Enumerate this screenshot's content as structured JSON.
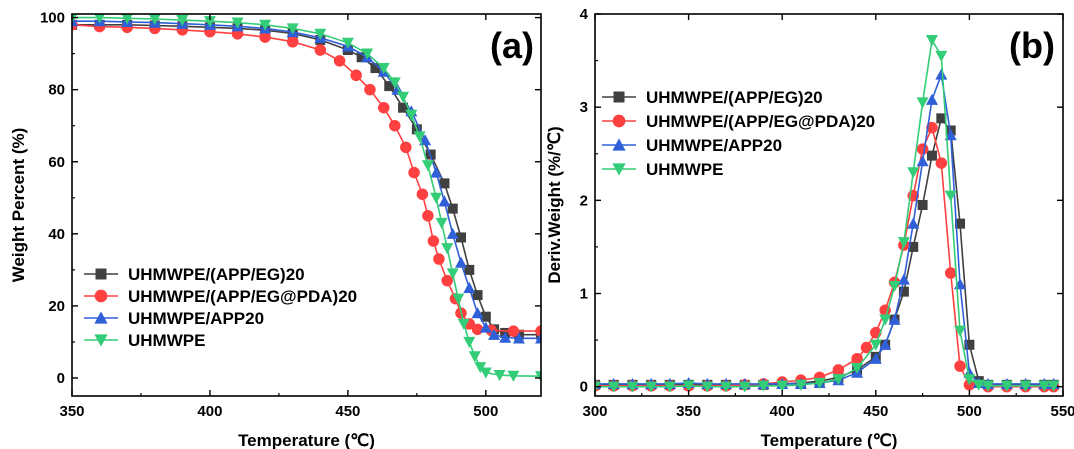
{
  "chart_data": [
    {
      "type": "scatter",
      "panel_label": "(a)",
      "title": "",
      "xlabel": "Temperature (℃)",
      "ylabel": "Weight Percent (%)",
      "xlim": [
        350,
        520
      ],
      "ylim": [
        -5,
        101
      ],
      "xticks": [
        350,
        400,
        450,
        500
      ],
      "yticks": [
        0,
        20,
        40,
        60,
        80,
        100
      ],
      "grid": false,
      "legend_position": "bottom-left",
      "series": [
        {
          "name": "UHMWPE/(APP/EG)20",
          "color": "#404040",
          "marker": "square",
          "points": [
            [
              350,
              98
            ],
            [
              360,
              98
            ],
            [
              370,
              98
            ],
            [
              380,
              97.8
            ],
            [
              390,
              97.6
            ],
            [
              400,
              97.3
            ],
            [
              410,
              97
            ],
            [
              420,
              96.5
            ],
            [
              430,
              95.6
            ],
            [
              440,
              93.8
            ],
            [
              450,
              91
            ],
            [
              455,
              89
            ],
            [
              460,
              86
            ],
            [
              465,
              81
            ],
            [
              470,
              75
            ],
            [
              475,
              69
            ],
            [
              480,
              62
            ],
            [
              485,
              54
            ],
            [
              488,
              47
            ],
            [
              491,
              39
            ],
            [
              494,
              30
            ],
            [
              497,
              23
            ],
            [
              500,
              17
            ],
            [
              503,
              13.5
            ],
            [
              507,
              12.5
            ],
            [
              512,
              12
            ],
            [
              520,
              12
            ]
          ]
        },
        {
          "name": "UHMWPE/(APP/EG@PDA)20",
          "color": "#ff4040",
          "marker": "circle",
          "points": [
            [
              350,
              98
            ],
            [
              360,
              97.5
            ],
            [
              370,
              97.3
            ],
            [
              380,
              97
            ],
            [
              390,
              96.6
            ],
            [
              400,
              96.1
            ],
            [
              410,
              95.5
            ],
            [
              420,
              94.6
            ],
            [
              430,
              93.3
            ],
            [
              440,
              91
            ],
            [
              447,
              88
            ],
            [
              453,
              84
            ],
            [
              458,
              80
            ],
            [
              463,
              75
            ],
            [
              467,
              70
            ],
            [
              471,
              64
            ],
            [
              474,
              57
            ],
            [
              477,
              51
            ],
            [
              479,
              45
            ],
            [
              481,
              38
            ],
            [
              483,
              33
            ],
            [
              486,
              27
            ],
            [
              489,
              22
            ],
            [
              491,
              18
            ],
            [
              494,
              15
            ],
            [
              497,
              13.5
            ],
            [
              502,
              13.2
            ],
            [
              510,
              13
            ],
            [
              520,
              13
            ]
          ]
        },
        {
          "name": "UHMWPE/APP20",
          "color": "#3060d8",
          "marker": "triangle-up",
          "points": [
            [
              350,
              99
            ],
            [
              360,
              99
            ],
            [
              370,
              98.8
            ],
            [
              380,
              98.6
            ],
            [
              390,
              98.3
            ],
            [
              400,
              98
            ],
            [
              410,
              97.6
            ],
            [
              420,
              97
            ],
            [
              430,
              96
            ],
            [
              440,
              94.4
            ],
            [
              450,
              92
            ],
            [
              457,
              89
            ],
            [
              463,
              85
            ],
            [
              468,
              80
            ],
            [
              473,
              74
            ],
            [
              478,
              66
            ],
            [
              482,
              57
            ],
            [
              485,
              49
            ],
            [
              488,
              40
            ],
            [
              491,
              32
            ],
            [
              494,
              25
            ],
            [
              497,
              18
            ],
            [
              500,
              14
            ],
            [
              503,
              12
            ],
            [
              507,
              11.2
            ],
            [
              512,
              11
            ],
            [
              520,
              11
            ]
          ]
        },
        {
          "name": "UHMWPE",
          "color": "#33cc77",
          "marker": "triangle-down",
          "points": [
            [
              350,
              100
            ],
            [
              360,
              100
            ],
            [
              370,
              99.8
            ],
            [
              380,
              99.6
            ],
            [
              390,
              99.3
            ],
            [
              400,
              99
            ],
            [
              410,
              98.6
            ],
            [
              420,
              98
            ],
            [
              430,
              97
            ],
            [
              440,
              95.5
            ],
            [
              450,
              93
            ],
            [
              457,
              90
            ],
            [
              463,
              86
            ],
            [
              467,
              82
            ],
            [
              470,
              78
            ],
            [
              473,
              73
            ],
            [
              476,
              67
            ],
            [
              479,
              59
            ],
            [
              482,
              50
            ],
            [
              484,
              43
            ],
            [
              486,
              36
            ],
            [
              488,
              29
            ],
            [
              490,
              22
            ],
            [
              492,
              15
            ],
            [
              494,
              10
            ],
            [
              496,
              6
            ],
            [
              498,
              3
            ],
            [
              500,
              1.5
            ],
            [
              505,
              0.8
            ],
            [
              510,
              0.6
            ],
            [
              520,
              0.5
            ]
          ]
        }
      ]
    },
    {
      "type": "scatter",
      "panel_label": "(b)",
      "title": "",
      "xlabel": "Temperature (℃)",
      "ylabel": "Deriv.Weight (%/℃)",
      "xlim": [
        300,
        550
      ],
      "ylim": [
        -0.1,
        4
      ],
      "xticks": [
        300,
        350,
        400,
        450,
        500,
        550
      ],
      "yticks": [
        0,
        1,
        2,
        3,
        4
      ],
      "grid": false,
      "legend_position": "top-left",
      "series": [
        {
          "name": "UHMWPE/(APP/EG)20",
          "color": "#404040",
          "marker": "square",
          "points": [
            [
              300,
              0.02
            ],
            [
              310,
              0.02
            ],
            [
              320,
              0.02
            ],
            [
              330,
              0.02
            ],
            [
              340,
              0.02
            ],
            [
              350,
              0.02
            ],
            [
              360,
              0.02
            ],
            [
              370,
              0.02
            ],
            [
              380,
              0.02
            ],
            [
              390,
              0.02
            ],
            [
              400,
              0.03
            ],
            [
              410,
              0.04
            ],
            [
              420,
              0.06
            ],
            [
              430,
              0.1
            ],
            [
              440,
              0.18
            ],
            [
              450,
              0.32
            ],
            [
              455,
              0.45
            ],
            [
              460,
              0.72
            ],
            [
              465,
              1.02
            ],
            [
              470,
              1.5
            ],
            [
              475,
              1.95
            ],
            [
              480,
              2.48
            ],
            [
              485,
              2.88
            ],
            [
              490,
              2.75
            ],
            [
              495,
              1.75
            ],
            [
              500,
              0.45
            ],
            [
              505,
              0.06
            ],
            [
              510,
              0.02
            ],
            [
              520,
              0.02
            ],
            [
              530,
              0.02
            ],
            [
              540,
              0.02
            ],
            [
              545,
              0.02
            ]
          ]
        },
        {
          "name": "UHMWPE/(APP/EG@PDA)20",
          "color": "#ff4040",
          "marker": "circle",
          "points": [
            [
              300,
              0.01
            ],
            [
              310,
              0.01
            ],
            [
              320,
              0.01
            ],
            [
              330,
              0.01
            ],
            [
              340,
              0.01
            ],
            [
              350,
              0.01
            ],
            [
              360,
              0.01
            ],
            [
              370,
              0.01
            ],
            [
              380,
              0.02
            ],
            [
              390,
              0.03
            ],
            [
              400,
              0.05
            ],
            [
              410,
              0.07
            ],
            [
              420,
              0.1
            ],
            [
              430,
              0.18
            ],
            [
              440,
              0.3
            ],
            [
              445,
              0.42
            ],
            [
              450,
              0.58
            ],
            [
              455,
              0.82
            ],
            [
              460,
              1.12
            ],
            [
              465,
              1.52
            ],
            [
              470,
              2.05
            ],
            [
              475,
              2.55
            ],
            [
              480,
              2.78
            ],
            [
              485,
              2.4
            ],
            [
              490,
              1.22
            ],
            [
              495,
              0.22
            ],
            [
              500,
              0.02
            ],
            [
              510,
              0.0
            ],
            [
              520,
              0.0
            ],
            [
              530,
              0.0
            ],
            [
              540,
              0.0
            ],
            [
              545,
              0.0
            ]
          ]
        },
        {
          "name": "UHMWPE/APP20",
          "color": "#3060d8",
          "marker": "triangle-up",
          "points": [
            [
              300,
              0.03
            ],
            [
              310,
              0.03
            ],
            [
              320,
              0.03
            ],
            [
              330,
              0.03
            ],
            [
              340,
              0.03
            ],
            [
              350,
              0.04
            ],
            [
              360,
              0.03
            ],
            [
              370,
              0.03
            ],
            [
              380,
              0.03
            ],
            [
              390,
              0.03
            ],
            [
              400,
              0.03
            ],
            [
              410,
              0.03
            ],
            [
              420,
              0.04
            ],
            [
              430,
              0.07
            ],
            [
              440,
              0.15
            ],
            [
              450,
              0.3
            ],
            [
              455,
              0.45
            ],
            [
              460,
              0.72
            ],
            [
              465,
              1.15
            ],
            [
              470,
              1.75
            ],
            [
              475,
              2.42
            ],
            [
              480,
              3.08
            ],
            [
              485,
              3.35
            ],
            [
              490,
              2.7
            ],
            [
              495,
              1.1
            ],
            [
              500,
              0.15
            ],
            [
              505,
              0.04
            ],
            [
              510,
              0.03
            ],
            [
              520,
              0.03
            ],
            [
              530,
              0.03
            ],
            [
              540,
              0.03
            ],
            [
              545,
              0.03
            ]
          ]
        },
        {
          "name": "UHMWPE",
          "color": "#33cc77",
          "marker": "triangle-down",
          "points": [
            [
              300,
              0.0
            ],
            [
              310,
              0.0
            ],
            [
              320,
              0.0
            ],
            [
              330,
              0.0
            ],
            [
              340,
              0.0
            ],
            [
              350,
              0.01
            ],
            [
              360,
              0.0
            ],
            [
              370,
              0.0
            ],
            [
              380,
              0.0
            ],
            [
              390,
              0.01
            ],
            [
              400,
              0.01
            ],
            [
              410,
              0.02
            ],
            [
              420,
              0.04
            ],
            [
              430,
              0.08
            ],
            [
              440,
              0.2
            ],
            [
              450,
              0.45
            ],
            [
              455,
              0.72
            ],
            [
              460,
              1.08
            ],
            [
              465,
              1.55
            ],
            [
              470,
              2.3
            ],
            [
              475,
              3.05
            ],
            [
              480,
              3.72
            ],
            [
              485,
              3.55
            ],
            [
              490,
              2.05
            ],
            [
              495,
              0.6
            ],
            [
              500,
              0.08
            ],
            [
              505,
              0.02
            ],
            [
              510,
              0.01
            ],
            [
              520,
              0.01
            ],
            [
              530,
              0.01
            ],
            [
              540,
              0.01
            ],
            [
              545,
              0.01
            ]
          ]
        }
      ]
    }
  ]
}
